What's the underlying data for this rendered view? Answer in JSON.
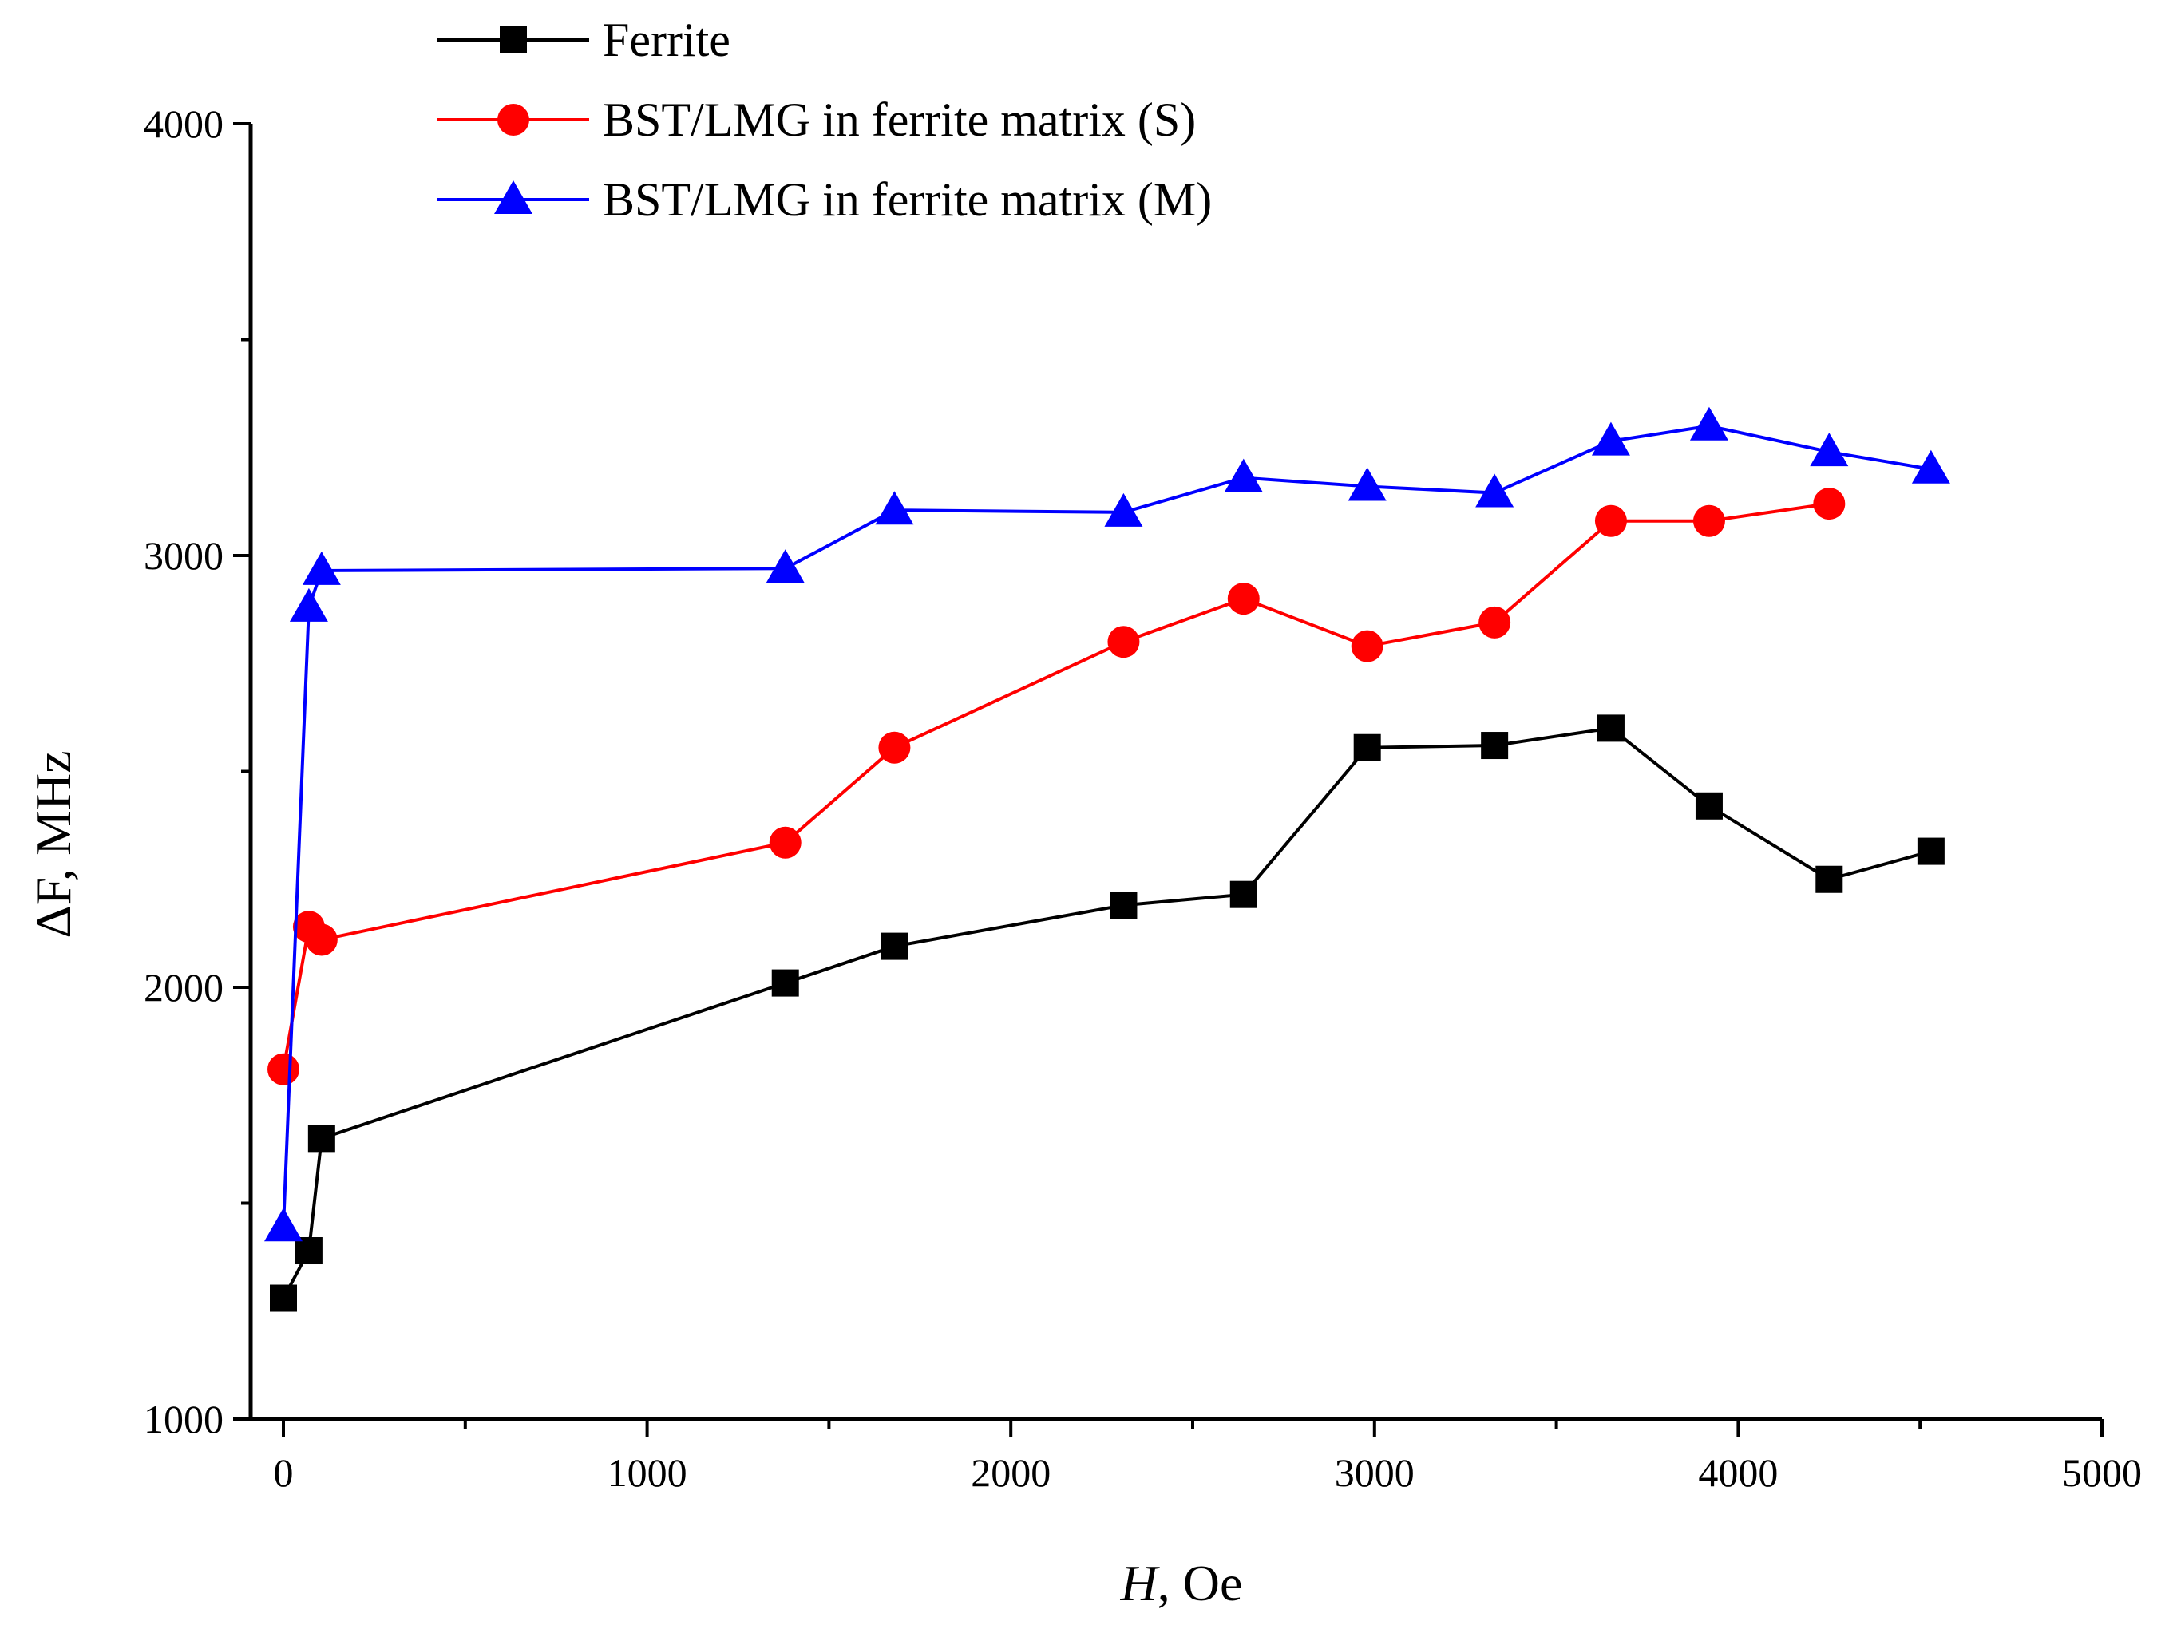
{
  "chart_data": {
    "type": "line",
    "title": "",
    "xlabel_var": "H",
    "xlabel_unit": ", Oe",
    "ylabel": "ΔF, MHz",
    "xlim": [
      -90,
      5000
    ],
    "ylim": [
      1000,
      4000
    ],
    "x_ticks": [
      0,
      1000,
      2000,
      3000,
      4000,
      5000
    ],
    "x_tick_labels": [
      "0",
      "1000",
      "2000",
      "3000",
      "4000",
      "5000"
    ],
    "y_ticks": [
      1000,
      2000,
      3000,
      4000
    ],
    "y_tick_labels": [
      "1000",
      "2000",
      "3000",
      "4000"
    ],
    "legend_position": "top-center",
    "series": [
      {
        "name": "Ferrite",
        "color": "#000000",
        "marker": "square",
        "x": [
          0,
          70,
          105,
          1380,
          1680,
          2310,
          2640,
          2980,
          3330,
          3650,
          3920,
          4250,
          4530
        ],
        "y": [
          1280,
          1390,
          1650,
          2010,
          2095,
          2190,
          2215,
          2555,
          2560,
          2600,
          2420,
          2250,
          2315
        ]
      },
      {
        "name": "BST/LMG in ferrite matrix (S)",
        "color": "#ff0000",
        "marker": "circle",
        "x": [
          0,
          70,
          105,
          1380,
          1680,
          2310,
          2640,
          2980,
          3330,
          3650,
          3920,
          4250
        ],
        "y": [
          1810,
          2140,
          2110,
          2335,
          2555,
          2800,
          2900,
          2790,
          2845,
          3080,
          3080,
          3120
        ]
      },
      {
        "name": "BST/LMG in ferrite matrix (M)",
        "color": "#0000ff",
        "marker": "triangle",
        "x": [
          0,
          70,
          105,
          1380,
          1680,
          2310,
          2640,
          2980,
          3330,
          3650,
          3920,
          4250,
          4530
        ],
        "y": [
          1445,
          2880,
          2965,
          2970,
          3105,
          3100,
          3180,
          3160,
          3145,
          3265,
          3300,
          3240,
          3200
        ]
      }
    ]
  }
}
